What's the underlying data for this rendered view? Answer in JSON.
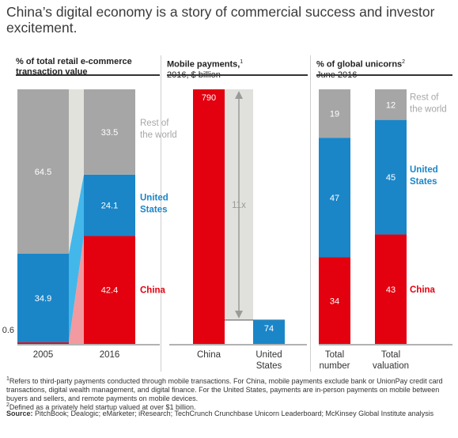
{
  "title": "China’s digital economy is a story of commercial success and investor excitement.",
  "colors": {
    "china": "#e3000f",
    "us": "#1a86c8",
    "rest": "#a6a6a6",
    "china_light": "#f29a9f",
    "us_light": "#43b7ea",
    "rest_light": "#e2e2dd",
    "arrow_bg": "#e0e0dc",
    "arrow": "#9a9a9a"
  },
  "panels": [
    {
      "heading": "% of total retail e-commerce",
      "heading2": "transaction value",
      "sub": ""
    },
    {
      "heading": "Mobile payments,",
      "heading_sup": "1",
      "heading2": "",
      "sub": "2016, $ billion"
    },
    {
      "heading": "% of global unicorns",
      "heading_sup": "2",
      "heading2": "",
      "sub": "June 2016"
    }
  ],
  "chart_data": [
    {
      "type": "bar",
      "stacked": true,
      "title": "% of total retail e-commerce transaction value",
      "categories": [
        "2005",
        "2016"
      ],
      "series": [
        {
          "name": "China",
          "values": [
            0.6,
            42.4
          ]
        },
        {
          "name": "United States",
          "values": [
            34.9,
            24.1
          ]
        },
        {
          "name": "Rest of the world",
          "values": [
            64.5,
            33.5
          ]
        }
      ],
      "ylim": [
        0,
        100
      ]
    },
    {
      "type": "bar",
      "title": "Mobile payments, 2016, $ billion",
      "categories": [
        "China",
        "United States"
      ],
      "values": [
        790,
        74
      ],
      "annotation": "11x"
    },
    {
      "type": "bar",
      "stacked": true,
      "title": "% of global unicorns, June 2016",
      "categories": [
        "Total number",
        "Total valuation"
      ],
      "series": [
        {
          "name": "China",
          "values": [
            34,
            43
          ]
        },
        {
          "name": "United States",
          "values": [
            47,
            45
          ]
        },
        {
          "name": "Rest of the world",
          "values": [
            19,
            12
          ]
        }
      ],
      "ylim": [
        0,
        100
      ]
    }
  ],
  "labels": {
    "p1_cats": [
      "2005",
      "2016"
    ],
    "p1_legend": [
      "Rest of",
      "the world",
      "United",
      "States",
      "China"
    ],
    "p2_cats": [
      "China",
      "United",
      "States"
    ],
    "p3_cats": [
      "Total",
      "number",
      "Total",
      "valuation"
    ],
    "p3_legend": [
      "Rest of",
      "the world",
      "United",
      "States",
      "China"
    ]
  },
  "footnotes": {
    "f1_mark": "1",
    "f1": "Refers to third-party payments conducted through mobile transactions. For China, mobile payments exclude bank or UnionPay credit card transactions, digital wealth management, and digital finance. For the United States, payments are in-person payments on mobile between buyers and sellers, and remote payments on mobile devices.",
    "f2_mark": "2",
    "f2": "Defined as a privately held startup valued at over $1 billion.",
    "source_label": "Source:",
    "source": "PitchBook; Dealogic; eMarketer; iResearch; TechCrunch Crunchbase Unicorn Leaderboard; McKinsey Global Institute analysis"
  }
}
